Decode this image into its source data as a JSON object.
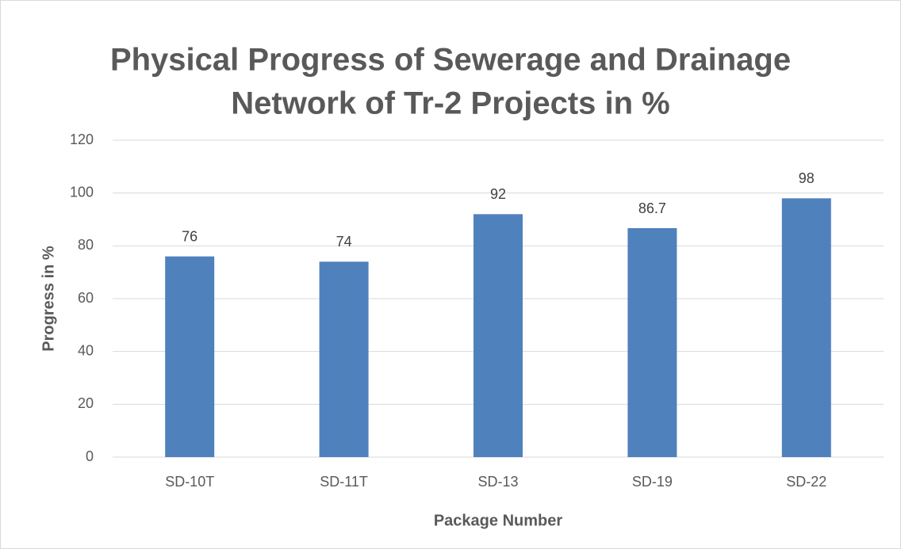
{
  "chart_data": {
    "type": "bar",
    "title": [
      "Physical Progress of Sewerage and Drainage",
      "Network of Tr-2 Projects in %"
    ],
    "x_label": "Package Number",
    "y_label": "Progress in %",
    "categories": [
      "SD-10T",
      "SD-11T",
      "SD-13",
      "SD-19",
      "SD-22"
    ],
    "values": [
      76,
      74,
      92,
      86.7,
      98
    ],
    "color": "#4f81bd",
    "ylim": [
      0,
      120
    ],
    "yticks": [
      0,
      20,
      40,
      60,
      80,
      100,
      120
    ],
    "grid": true
  }
}
